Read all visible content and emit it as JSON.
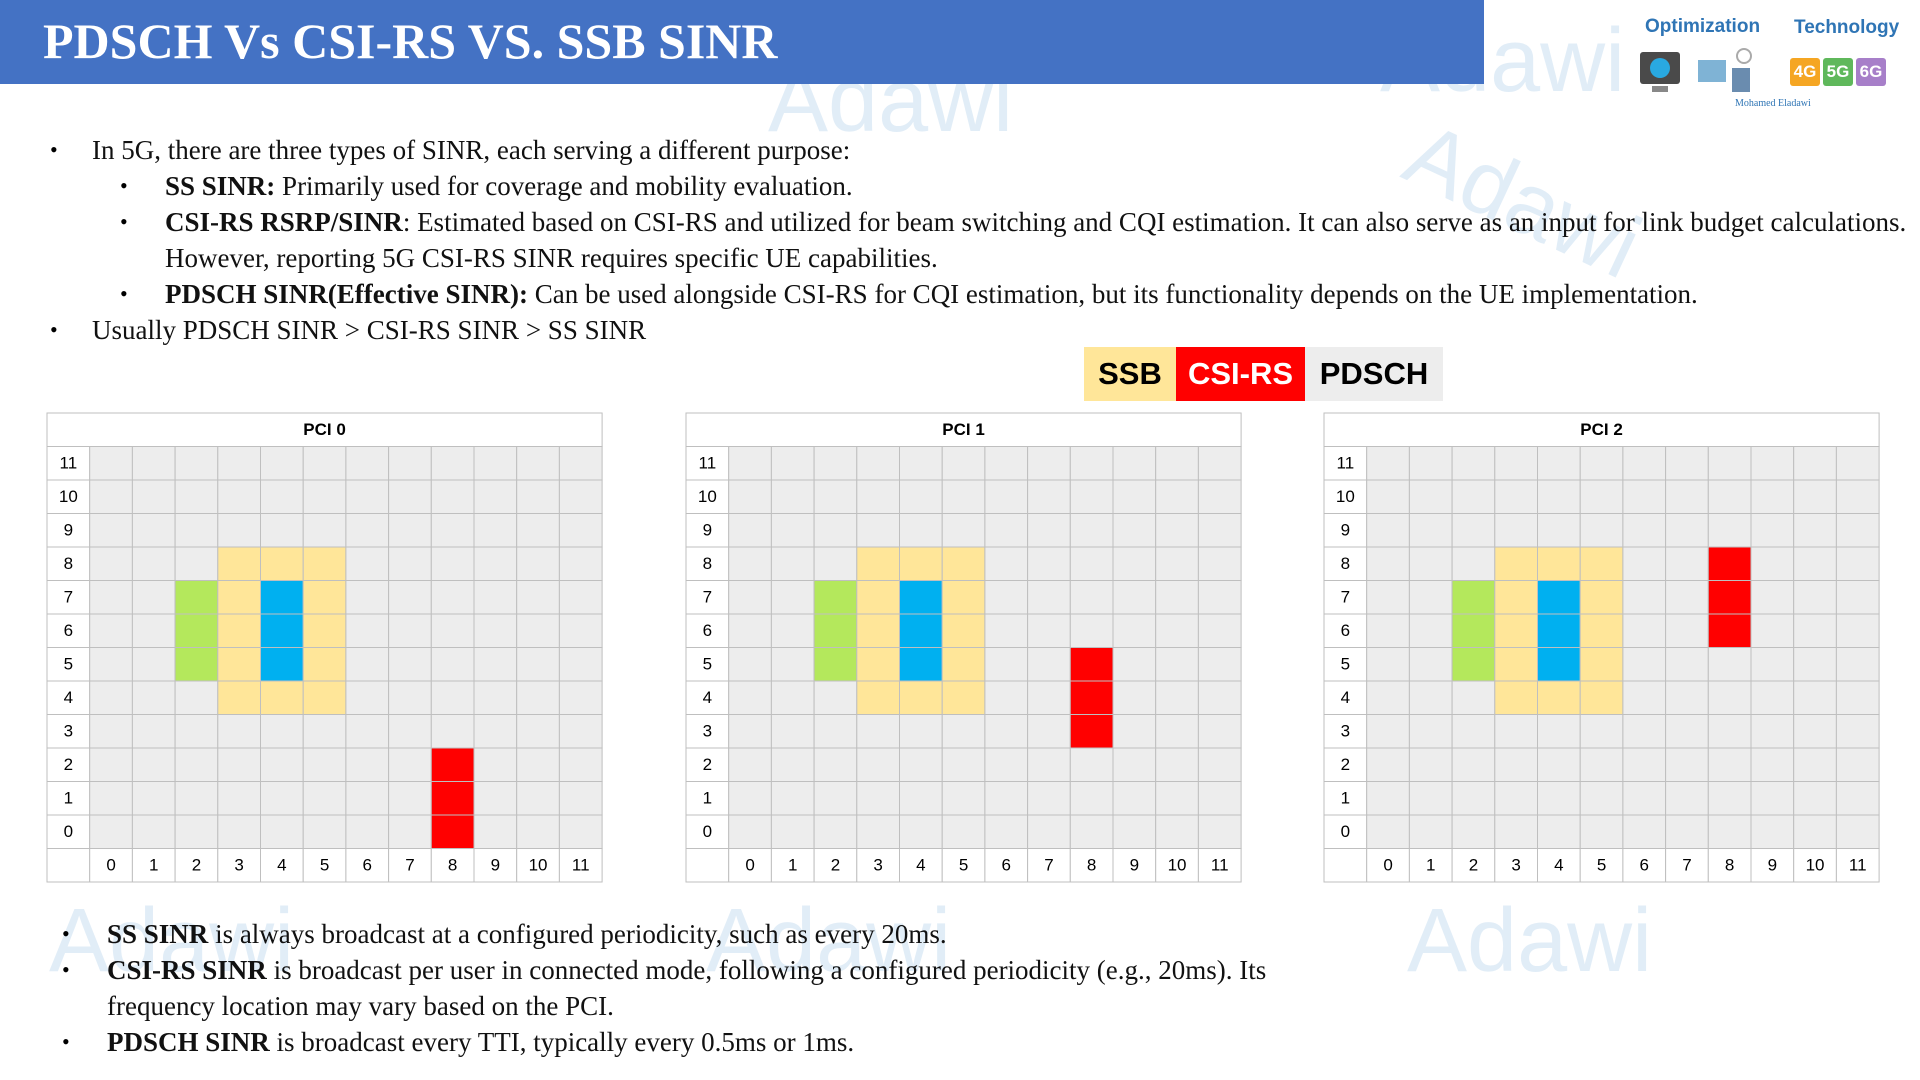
{
  "header": {
    "title": "PDSCH Vs CSI-RS VS. SSB SINR"
  },
  "logo": {
    "left": "Optimization",
    "right": "Technology",
    "author": "Mohamed Eladawi",
    "badges": [
      "4G",
      "5G",
      "6G"
    ]
  },
  "watermark": "Adawi",
  "intro": [
    {
      "text": "In 5G, there are three types of SINR, each serving a different purpose:",
      "items": [
        {
          "bold": "SS SINR:",
          "text": " Primarily used for coverage and mobility evaluation."
        },
        {
          "bold": "CSI-RS RSRP/SINR",
          "text": ": Estimated based on CSI-RS and utilized for beam switching and CQI estimation. It can also serve as an input for link budget calculations. However, reporting 5G CSI-RS SINR requires specific UE capabilities."
        },
        {
          "bold": "PDSCH SINR(Effective SINR):",
          "text": " Can be used alongside CSI-RS for CQI estimation, but its functionality depends on the UE implementation."
        }
      ]
    },
    {
      "text": "Usually PDSCH SINR > CSI-RS SINR > SS SINR",
      "items": []
    }
  ],
  "legend": [
    "SSB",
    "CSI-RS",
    "PDSCH"
  ],
  "grid_axis": {
    "rows": [
      11,
      10,
      9,
      8,
      7,
      6,
      5,
      4,
      3,
      2,
      1,
      0
    ],
    "columns": [
      0,
      1,
      2,
      3,
      4,
      5,
      6,
      7,
      8,
      9,
      10,
      11
    ]
  },
  "grids": [
    {
      "title": "PCI 0"
    },
    {
      "title": "PCI 1"
    },
    {
      "title": "PCI 2"
    }
  ],
  "notes": [
    {
      "bold": "SS SINR",
      "text": " is always broadcast at a configured periodicity, such as every 20ms."
    },
    {
      "bold": "CSI-RS SINR",
      "text": " is broadcast per user in connected mode, following a configured periodicity (e.g., 20ms). Its frequency location may vary based on the PCI."
    },
    {
      "bold": "PDSCH SINR",
      "text": " is broadcast every TTI, typically every 0.5ms or 1ms."
    }
  ]
}
